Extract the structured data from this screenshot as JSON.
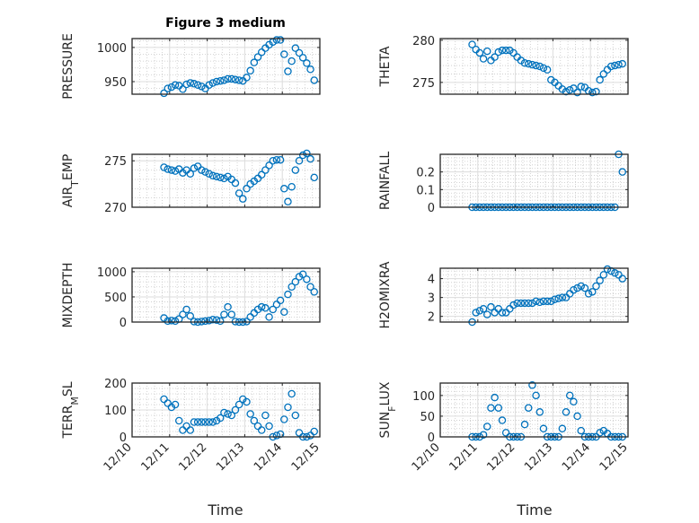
{
  "figure": {
    "title": "Figure 3 medium",
    "xlabel": "Time",
    "marker_color": "#0072BD"
  },
  "chart_data": {
    "type": "scatter",
    "x_unit": "days since 12/10 00:00",
    "xlim": [
      0,
      5
    ],
    "xticks": [
      0,
      1,
      2,
      3,
      4,
      5
    ],
    "xtick_labels": [
      "12/10",
      "12/11",
      "12/12",
      "12/13",
      "12/14",
      "12/15"
    ],
    "x_minor_step": 0.2,
    "t": [
      0.85,
      0.95,
      1.05,
      1.15,
      1.25,
      1.35,
      1.45,
      1.55,
      1.65,
      1.75,
      1.85,
      1.95,
      2.05,
      2.15,
      2.25,
      2.35,
      2.45,
      2.55,
      2.65,
      2.75,
      2.85,
      2.95,
      3.05,
      3.15,
      3.25,
      3.35,
      3.45,
      3.55,
      3.65,
      3.75,
      3.85,
      3.95,
      4.05,
      4.15,
      4.25,
      4.35,
      4.45,
      4.55,
      4.65,
      4.75,
      4.85
    ],
    "panels": [
      {
        "name": "pressure",
        "ylabel": [
          {
            "t": "PRESSURE"
          }
        ],
        "ylim": [
          931.6,
          1013
        ],
        "yticks": [
          950,
          1000
        ],
        "ytick_labels": [
          "950",
          "1000"
        ],
        "y_minor_step": 10,
        "values": [
          933,
          940,
          942,
          945,
          944,
          939,
          946,
          948,
          947,
          945,
          943,
          940,
          945,
          948,
          950,
          951,
          952,
          954,
          954,
          953,
          952,
          951,
          956,
          966,
          978,
          986,
          993,
          999,
          1004,
          1008,
          1011,
          1011,
          990,
          965,
          980,
          999,
          992,
          985,
          977,
          968,
          952
        ]
      },
      {
        "name": "theta",
        "ylabel": [
          {
            "t": "THETA"
          }
        ],
        "ylim": [
          273.6,
          280.2
        ],
        "yticks": [
          275,
          280
        ],
        "ytick_labels": [
          "275",
          "280"
        ],
        "y_minor_step": 1,
        "values": [
          279.5,
          278.9,
          278.5,
          277.8,
          278.7,
          277.6,
          278.0,
          278.6,
          278.8,
          278.8,
          278.8,
          278.5,
          278.0,
          277.6,
          277.3,
          277.2,
          277.1,
          277.0,
          276.9,
          276.7,
          276.5,
          275.3,
          275.0,
          274.6,
          274.2,
          273.9,
          274.1,
          274.3,
          273.8,
          274.5,
          274.4,
          274.0,
          273.8,
          273.9,
          275.3,
          276.0,
          276.5,
          276.9,
          277.0,
          277.1,
          277.2
        ]
      },
      {
        "name": "air-temp",
        "ylabel": [
          {
            "t": "AIR"
          },
          {
            "t": "T",
            "sub": true
          },
          {
            "t": "EMP"
          }
        ],
        "ylim": [
          270,
          275.7
        ],
        "yticks": [
          270,
          275
        ],
        "ytick_labels": [
          "270",
          "275"
        ],
        "y_minor_step": 1,
        "values": [
          274.3,
          274.1,
          274.0,
          273.9,
          274.1,
          273.7,
          274.0,
          273.6,
          274.2,
          274.4,
          274.0,
          273.8,
          273.6,
          273.4,
          273.3,
          273.2,
          273.1,
          273.3,
          273.0,
          272.6,
          271.5,
          270.9,
          272.0,
          272.5,
          272.8,
          273.1,
          273.5,
          274.0,
          274.5,
          275.0,
          275.1,
          275.1,
          272.0,
          270.6,
          272.2,
          274.0,
          275.0,
          275.6,
          275.8,
          275.2,
          273.2
        ]
      },
      {
        "name": "rainfall",
        "ylabel": [
          {
            "t": "RAINFALL"
          }
        ],
        "ylim": [
          0,
          0.3
        ],
        "yticks": [
          0,
          0.1,
          0.2
        ],
        "ytick_labels": [
          "0",
          "0.1",
          "0.2"
        ],
        "y_minor_step": 0.02,
        "values": [
          0,
          0,
          0,
          0,
          0,
          0,
          0,
          0,
          0,
          0,
          0,
          0,
          0,
          0,
          0,
          0,
          0,
          0,
          0,
          0,
          0,
          0,
          0,
          0,
          0,
          0,
          0,
          0,
          0,
          0,
          0,
          0,
          0,
          0,
          0,
          0,
          0,
          0,
          0,
          0.3,
          0.2
        ]
      },
      {
        "name": "mixdepth",
        "ylabel": [
          {
            "t": "MIXDEPTH"
          }
        ],
        "ylim": [
          0,
          1070
        ],
        "yticks": [
          0,
          500,
          1000
        ],
        "ytick_labels": [
          "0",
          "500",
          "1000"
        ],
        "y_minor_step": 100,
        "values": [
          80,
          20,
          30,
          20,
          60,
          150,
          250,
          120,
          10,
          0,
          10,
          20,
          30,
          50,
          40,
          20,
          150,
          300,
          150,
          10,
          0,
          0,
          10,
          100,
          180,
          250,
          300,
          280,
          100,
          250,
          350,
          430,
          200,
          550,
          700,
          800,
          900,
          950,
          850,
          700,
          600
        ]
      },
      {
        "name": "h2omixra",
        "ylabel": [
          {
            "t": "H2OMIXRA"
          }
        ],
        "ylim": [
          1.7,
          4.55
        ],
        "yticks": [
          2,
          3,
          4
        ],
        "ytick_labels": [
          "2",
          "3",
          "4"
        ],
        "y_minor_step": 0.2,
        "values": [
          1.7,
          2.2,
          2.3,
          2.4,
          2.1,
          2.5,
          2.2,
          2.4,
          2.2,
          2.2,
          2.4,
          2.6,
          2.7,
          2.7,
          2.7,
          2.7,
          2.7,
          2.8,
          2.75,
          2.8,
          2.8,
          2.8,
          2.9,
          2.95,
          3.0,
          3.0,
          3.2,
          3.4,
          3.5,
          3.6,
          3.5,
          3.2,
          3.3,
          3.6,
          3.9,
          4.2,
          4.5,
          4.4,
          4.3,
          4.2,
          4.0
        ]
      },
      {
        "name": "terr-msl",
        "ylabel": [
          {
            "t": "TERR"
          },
          {
            "t": "M",
            "sub": true
          },
          {
            "t": "SL"
          }
        ],
        "ylim": [
          0,
          200
        ],
        "yticks": [
          0,
          100,
          200
        ],
        "ytick_labels": [
          "0",
          "100",
          "200"
        ],
        "y_minor_step": 20,
        "values": [
          140,
          125,
          110,
          120,
          60,
          25,
          40,
          25,
          55,
          55,
          55,
          55,
          55,
          55,
          60,
          70,
          90,
          85,
          80,
          100,
          120,
          140,
          130,
          85,
          60,
          40,
          25,
          80,
          40,
          0,
          5,
          10,
          65,
          110,
          160,
          80,
          15,
          0,
          0,
          5,
          20
        ]
      },
      {
        "name": "sun-flux",
        "ylabel": [
          {
            "t": "SUN"
          },
          {
            "t": "F",
            "sub": true
          },
          {
            "t": "LUX"
          }
        ],
        "ylim": [
          0,
          130
        ],
        "yticks": [
          0,
          50,
          100
        ],
        "ytick_labels": [
          "0",
          "50",
          "100"
        ],
        "y_minor_step": 10,
        "values": [
          0,
          0,
          0,
          5,
          25,
          70,
          95,
          70,
          40,
          10,
          0,
          0,
          0,
          0,
          30,
          70,
          125,
          100,
          60,
          20,
          0,
          0,
          0,
          0,
          20,
          60,
          100,
          85,
          50,
          15,
          0,
          0,
          0,
          0,
          10,
          15,
          8,
          0,
          0,
          0,
          0
        ]
      }
    ]
  }
}
